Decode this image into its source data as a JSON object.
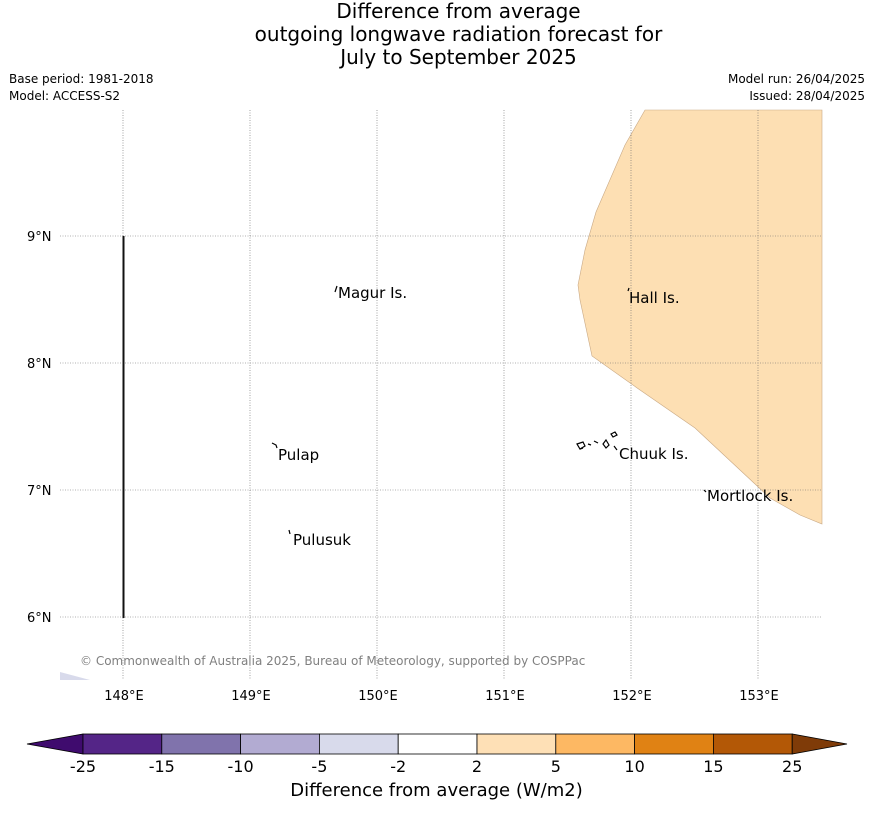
{
  "title": {
    "line1": "Difference from average",
    "line2": "outgoing longwave radiation forecast for",
    "line3": "July to September 2025"
  },
  "meta": {
    "base_period": "Base period: 1981-2018",
    "model": "Model: ACCESS-S2",
    "model_run": "Model run: 26/04/2025",
    "issued": "Issued: 28/04/2025"
  },
  "map": {
    "lat_labels": [
      "9°N",
      "8°N",
      "7°N",
      "6°N"
    ],
    "lon_labels": [
      "148°E",
      "149°E",
      "150°E",
      "151°E",
      "152°E",
      "153°E"
    ],
    "place_labels": [
      "Magur Is.",
      "Hall Is.",
      "Pulap",
      "Chuuk Is.",
      "Mortlock Is.",
      "Pulusuk"
    ],
    "copyright": "© Commonwealth of Australia 2025, Bureau of Meteorology, supported by COSPPac",
    "anomaly_fill_color": "#fddfb3",
    "anomaly_category": "2 to 5"
  },
  "colorbar": {
    "title": "Difference from average (W/m2)",
    "tick_labels": [
      "-25",
      "-15",
      "-10",
      "-5",
      "-2",
      "2",
      "5",
      "10",
      "15",
      "25"
    ],
    "colors": [
      "#3f0b6e",
      "#542587",
      "#8073ac",
      "#b2abd2",
      "#d8daeb",
      "#ffffff",
      "#fee0b6",
      "#fdb863",
      "#e08214",
      "#b35806",
      "#7f3b08"
    ]
  }
}
